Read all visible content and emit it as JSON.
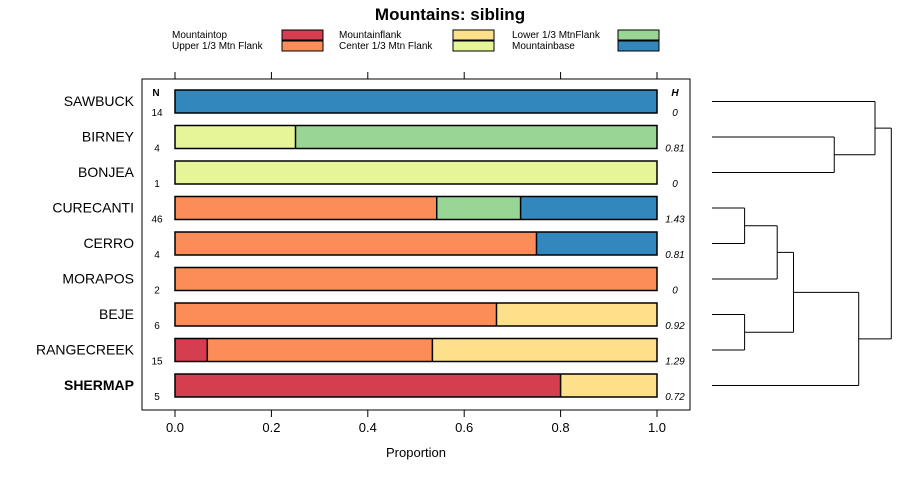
{
  "chart_data": {
    "type": "bar",
    "orientation": "horizontal",
    "stacked": true,
    "title": "Mountains: sibling",
    "xlabel": "Proportion",
    "xlim": [
      0,
      1
    ],
    "xticks": [
      "0.0",
      "0.2",
      "0.4",
      "0.6",
      "0.8",
      "1.0"
    ],
    "n_header": "N",
    "h_header": "H",
    "legend": [
      {
        "name": "Mountaintop",
        "color": "#d53e4f"
      },
      {
        "name": "Upper 1/3 Mtn Flank",
        "color": "#fc8d59"
      },
      {
        "name": "Mountainflank",
        "color": "#fee08b"
      },
      {
        "name": "Center 1/3 Mtn Flank",
        "color": "#e6f598"
      },
      {
        "name": "Lower 1/3 MtnFlank",
        "color": "#99d594"
      },
      {
        "name": "Mountainbase",
        "color": "#3288bd"
      }
    ],
    "rows": [
      {
        "label": "SAWBUCK",
        "n": "14",
        "h": "0",
        "bold": false,
        "segments": [
          {
            "series": "Mountainbase",
            "value": 1.0
          }
        ]
      },
      {
        "label": "BIRNEY",
        "n": "4",
        "h": "0.81",
        "bold": false,
        "segments": [
          {
            "series": "Center 1/3 Mtn Flank",
            "value": 0.25
          },
          {
            "series": "Lower 1/3 MtnFlank",
            "value": 0.75
          }
        ]
      },
      {
        "label": "BONJEA",
        "n": "1",
        "h": "0",
        "bold": false,
        "segments": [
          {
            "series": "Center 1/3 Mtn Flank",
            "value": 1.0
          }
        ]
      },
      {
        "label": "CURECANTI",
        "n": "46",
        "h": "1.43",
        "bold": false,
        "segments": [
          {
            "series": "Upper 1/3 Mtn Flank",
            "value": 0.543
          },
          {
            "series": "Lower 1/3 MtnFlank",
            "value": 0.174
          },
          {
            "series": "Mountainbase",
            "value": 0.283
          }
        ]
      },
      {
        "label": "CERRO",
        "n": "4",
        "h": "0.81",
        "bold": false,
        "segments": [
          {
            "series": "Upper 1/3 Mtn Flank",
            "value": 0.75
          },
          {
            "series": "Mountainbase",
            "value": 0.25
          }
        ]
      },
      {
        "label": "MORAPOS",
        "n": "2",
        "h": "0",
        "bold": false,
        "segments": [
          {
            "series": "Upper 1/3 Mtn Flank",
            "value": 1.0
          }
        ]
      },
      {
        "label": "BEJE",
        "n": "6",
        "h": "0.92",
        "bold": false,
        "segments": [
          {
            "series": "Upper 1/3 Mtn Flank",
            "value": 0.667
          },
          {
            "series": "Mountainflank",
            "value": 0.333
          }
        ]
      },
      {
        "label": "RANGECREEK",
        "n": "15",
        "h": "1.29",
        "bold": false,
        "segments": [
          {
            "series": "Mountaintop",
            "value": 0.067
          },
          {
            "series": "Upper 1/3 Mtn Flank",
            "value": 0.467
          },
          {
            "series": "Mountainflank",
            "value": 0.466
          }
        ]
      },
      {
        "label": "SHERMAP",
        "n": "5",
        "h": "0.72",
        "bold": true,
        "segments": [
          {
            "series": "Mountaintop",
            "value": 0.8
          },
          {
            "series": "Mountainflank",
            "value": 0.2
          }
        ]
      }
    ],
    "dendrogram": {
      "merges": [
        {
          "a": "CURECANTI",
          "b": "CERRO",
          "height": 0.2
        },
        {
          "a": "BEJE",
          "b": "RANGECREEK",
          "height": 0.2
        },
        {
          "a": "CURECANTI+CERRO",
          "b": "MORAPOS",
          "height": 0.4
        },
        {
          "a": "BIRNEY",
          "b": "BONJEA",
          "height": 0.75
        },
        {
          "a": "CURECANTI+CERRO+MORAPOS",
          "b": "BEJE+RANGECREEK",
          "height": 0.5
        },
        {
          "a": "CURECANTI+CERRO+MORAPOS+BEJE+RANGECREEK",
          "b": "SHERMAP",
          "height": 0.9
        },
        {
          "a": "SAWBUCK",
          "b": "BIRNEY+BONJEA",
          "height": 1.0
        },
        {
          "a": "SAWBUCK+BIRNEY+BONJEA",
          "b": "CURECANTI+CERRO+MORAPOS+BEJE+RANGECREEK+SHERMAP",
          "height": 1.1
        }
      ]
    }
  }
}
